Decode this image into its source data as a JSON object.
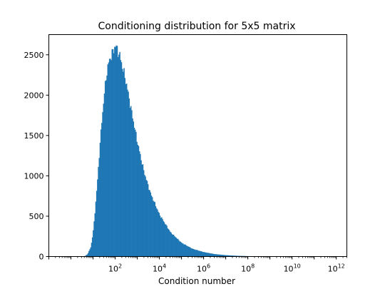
{
  "chart_data": {
    "type": "bar",
    "title": "Conditioning distribution for 5x5 matrix",
    "xlabel": "Condition number",
    "ylabel": "",
    "x_scale": "log",
    "xlim": [
      0.1,
      3000000000000
    ],
    "ylim": [
      0,
      2750
    ],
    "grid": false,
    "legend": "none",
    "bar_color": "#1f77b4",
    "y_ticks": [
      "0",
      "500",
      "1000",
      "1500",
      "2000",
      "2500"
    ],
    "y_tick_values": [
      0,
      500,
      1000,
      1500,
      2000,
      2500
    ],
    "x_ticks": [
      {
        "base": "10",
        "exp": "2",
        "value": 100
      },
      {
        "base": "10",
        "exp": "4",
        "value": 10000
      },
      {
        "base": "10",
        "exp": "6",
        "value": 1000000
      },
      {
        "base": "10",
        "exp": "8",
        "value": 100000000
      },
      {
        "base": "10",
        "exp": "10",
        "value": 10000000000
      },
      {
        "base": "10",
        "exp": "12",
        "value": 1000000000000
      }
    ],
    "histogram": {
      "log10_bin_min": 0.6,
      "log10_bin_max": 12.2,
      "bins": 300,
      "counts_by_log10_x": [
        {
          "log10_x": 0.6,
          "count": 0
        },
        {
          "log10_x": 0.75,
          "count": 30
        },
        {
          "log10_x": 0.9,
          "count": 120
        },
        {
          "log10_x": 1.0,
          "count": 300
        },
        {
          "log10_x": 1.1,
          "count": 600
        },
        {
          "log10_x": 1.2,
          "count": 950
        },
        {
          "log10_x": 1.3,
          "count": 1350
        },
        {
          "log10_x": 1.4,
          "count": 1700
        },
        {
          "log10_x": 1.5,
          "count": 2000
        },
        {
          "log10_x": 1.6,
          "count": 2250
        },
        {
          "log10_x": 1.7,
          "count": 2400
        },
        {
          "log10_x": 1.8,
          "count": 2480
        },
        {
          "log10_x": 1.9,
          "count": 2540
        },
        {
          "log10_x": 2.0,
          "count": 2620
        },
        {
          "log10_x": 2.1,
          "count": 2560
        },
        {
          "log10_x": 2.2,
          "count": 2490
        },
        {
          "log10_x": 2.3,
          "count": 2380
        },
        {
          "log10_x": 2.5,
          "count": 2150
        },
        {
          "log10_x": 2.7,
          "count": 1850
        },
        {
          "log10_x": 3.0,
          "count": 1420
        },
        {
          "log10_x": 3.3,
          "count": 1050
        },
        {
          "log10_x": 3.6,
          "count": 780
        },
        {
          "log10_x": 4.0,
          "count": 520
        },
        {
          "log10_x": 4.5,
          "count": 300
        },
        {
          "log10_x": 5.0,
          "count": 170
        },
        {
          "log10_x": 5.5,
          "count": 95
        },
        {
          "log10_x": 6.0,
          "count": 55
        },
        {
          "log10_x": 6.5,
          "count": 30
        },
        {
          "log10_x": 7.0,
          "count": 17
        },
        {
          "log10_x": 7.5,
          "count": 9
        },
        {
          "log10_x": 8.0,
          "count": 5
        },
        {
          "log10_x": 9.0,
          "count": 2
        },
        {
          "log10_x": 10.0,
          "count": 1
        },
        {
          "log10_x": 11.0,
          "count": 0
        },
        {
          "log10_x": 12.2,
          "count": 0
        }
      ]
    }
  }
}
